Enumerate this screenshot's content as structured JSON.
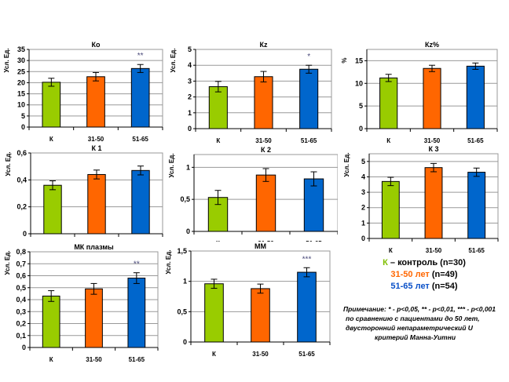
{
  "groups": {
    "categories": [
      "К",
      "31-50",
      "51-65"
    ],
    "colors": [
      "#99cc00",
      "#ff6600",
      "#0066cc"
    ]
  },
  "legend": {
    "items": [
      {
        "marker": "К",
        "text": " – контроль (n=30)",
        "color": "#7fbf00"
      },
      {
        "marker": "31-50 лет",
        "text": " (n=49)",
        "color": "#ff6600"
      },
      {
        "marker": "51-65 лет",
        "text": " (n=54)",
        "color": "#0a50c8"
      }
    ]
  },
  "note": {
    "lines": [
      "Примечание: * - p<0,05, ** - p<0,01, *** - p<0,001",
      "по сравнению с пациентами до 50 лет,",
      "двусторонний непараметрический U",
      "критерий Манна-Уитни"
    ]
  },
  "chart_data": [
    {
      "type": "bar",
      "title": "Ко",
      "xlabel": "",
      "ylabel": "Усл. Ед.",
      "categories": [
        "К",
        "31-50",
        "51-65"
      ],
      "values": [
        20.2,
        22.7,
        26.4
      ],
      "errors": [
        1.8,
        1.9,
        1.8
      ],
      "significance": [
        "",
        "",
        "**"
      ],
      "ylim": [
        0,
        35
      ],
      "yticks": [
        "0",
        "5",
        "10",
        "15",
        "20",
        "25",
        "30",
        "35"
      ],
      "grid": true
    },
    {
      "type": "bar",
      "title": "Кz",
      "xlabel": "",
      "ylabel": "Усл. Ед.",
      "categories": [
        "К",
        "31-50",
        "51-65"
      ],
      "values": [
        2.65,
        3.28,
        3.75
      ],
      "errors": [
        0.33,
        0.33,
        0.25
      ],
      "significance": [
        "",
        "",
        "*"
      ],
      "ylim": [
        0,
        5
      ],
      "yticks": [
        "0",
        "1",
        "2",
        "3",
        "4",
        "5"
      ],
      "grid": true
    },
    {
      "type": "bar",
      "title": "Кz%",
      "xlabel": "",
      "ylabel": "%",
      "categories": [
        "К",
        "31-50",
        "51-65"
      ],
      "values": [
        11.2,
        13.3,
        13.8
      ],
      "errors": [
        0.8,
        0.7,
        0.7
      ],
      "significance": [
        "",
        "",
        ""
      ],
      "ylim": [
        0,
        17.5
      ],
      "yticks": [
        "0",
        "5",
        "10",
        "15"
      ],
      "grid": true
    },
    {
      "type": "bar",
      "title": "К 1",
      "xlabel": "",
      "ylabel": "Усл. Ед.",
      "categories": [
        "К",
        "31-50",
        "51-65"
      ],
      "values": [
        0.36,
        0.44,
        0.47
      ],
      "errors": [
        0.033,
        0.033,
        0.033
      ],
      "significance": [
        "",
        "",
        ""
      ],
      "ylim": [
        0,
        0.6
      ],
      "yticks": [
        "0",
        "0,2",
        "0,4",
        "0,6"
      ],
      "grid": true
    },
    {
      "type": "bar",
      "title": "К 2",
      "xlabel": "",
      "ylabel": "Усл. Ед.",
      "categories": [
        "К",
        "31-50",
        "51-65"
      ],
      "values": [
        0.53,
        0.88,
        0.82
      ],
      "errors": [
        0.11,
        0.1,
        0.11
      ],
      "significance": [
        "",
        "",
        ""
      ],
      "ylim": [
        0,
        1.2
      ],
      "yticks": [
        "0",
        "0,5",
        "1"
      ],
      "grid": true
    },
    {
      "type": "bar",
      "title": "К 3",
      "xlabel": "",
      "ylabel": "Усл. Ед.",
      "categories": [
        "К",
        "31-50",
        "51-65"
      ],
      "values": [
        3.7,
        4.6,
        4.3
      ],
      "errors": [
        0.27,
        0.27,
        0.27
      ],
      "significance": [
        "",
        "",
        ""
      ],
      "ylim": [
        0,
        5.5
      ],
      "yticks": [
        "0",
        "1",
        "2",
        "3",
        "4",
        "5"
      ],
      "grid": true
    },
    {
      "type": "bar",
      "title": "МК плазмы",
      "xlabel": "",
      "ylabel": "Усл. Ед.",
      "categories": [
        "К",
        "31-50",
        "51-65"
      ],
      "values": [
        0.43,
        0.49,
        0.58
      ],
      "errors": [
        0.045,
        0.045,
        0.045
      ],
      "significance": [
        "",
        "",
        "**"
      ],
      "ylim": [
        0,
        0.8
      ],
      "yticks": [
        "0",
        "0,1",
        "0,2",
        "0,3",
        "0,4",
        "0,5",
        "0,6",
        "0,7",
        "0,8"
      ],
      "grid": true
    },
    {
      "type": "bar",
      "title": "ММ",
      "xlabel": "",
      "ylabel": "Усл. Ед.",
      "categories": [
        "К",
        "31-50",
        "51-65"
      ],
      "values": [
        0.96,
        0.88,
        1.15
      ],
      "errors": [
        0.075,
        0.075,
        0.075
      ],
      "significance": [
        "",
        "",
        "***"
      ],
      "ylim": [
        0,
        1.5
      ],
      "yticks": [
        "0",
        "0,5",
        "1",
        "1,5"
      ],
      "grid": true
    }
  ]
}
